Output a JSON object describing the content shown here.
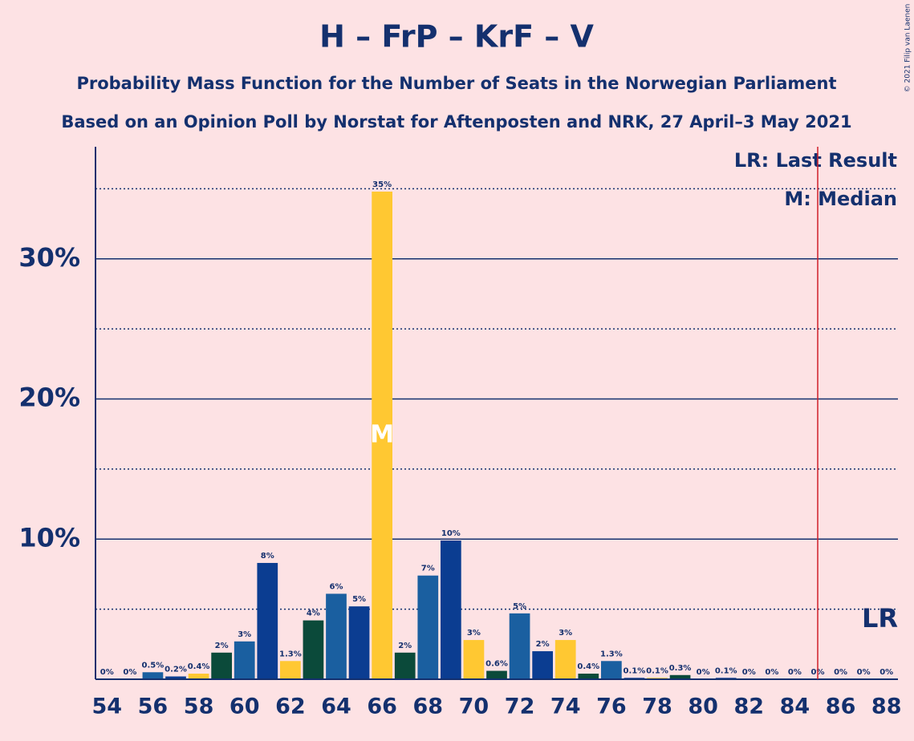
{
  "chart_data": {
    "type": "bar",
    "title": "H – FrP – KrF – V",
    "subtitle": "Probability Mass Function for the Number of Seats in the Norwegian Parliament",
    "subtitle2": "Based on an Opinion Poll by Norstat for Aftenposten and NRK, 27 April–3 May 2021",
    "copyright": "© 2021 Filip van Laenen",
    "x": [
      54,
      55,
      56,
      57,
      58,
      59,
      60,
      61,
      62,
      63,
      64,
      65,
      66,
      67,
      68,
      69,
      70,
      71,
      72,
      73,
      74,
      75,
      76,
      77,
      78,
      79,
      80,
      81,
      82,
      83,
      84,
      85,
      86,
      87,
      88
    ],
    "values": [
      0,
      0,
      0.5,
      0.2,
      0.4,
      1.9,
      2.7,
      8.3,
      1.3,
      4.2,
      6.1,
      5.2,
      34.8,
      1.9,
      7.4,
      9.9,
      2.8,
      0.6,
      4.7,
      2.0,
      2.8,
      0.4,
      1.3,
      0.1,
      0.1,
      0.3,
      0,
      0.1,
      0,
      0,
      0,
      0,
      0,
      0,
      0
    ],
    "value_labels": [
      "0%",
      "0%",
      "0.5%",
      "0.2%",
      "0.4%",
      "2%",
      "3%",
      "8%",
      "1.3%",
      "4%",
      "6%",
      "5%",
      "35%",
      "2%",
      "7%",
      "10%",
      "3%",
      "0.6%",
      "5%",
      "2%",
      "3%",
      "0.4%",
      "1.3%",
      "0.1%",
      "0.1%",
      "0.3%",
      "0%",
      "0.1%",
      "0%",
      "0%",
      "0%",
      "0%",
      "0%",
      "0%",
      "0%"
    ],
    "colors": [
      "#ffc832",
      "#0b4a3a",
      "#1a5fa0",
      "#0b3d91",
      "#ffc832",
      "#0b4a3a",
      "#1a5fa0",
      "#0b3d91",
      "#ffc832",
      "#0b4a3a",
      "#1a5fa0",
      "#0b3d91",
      "#ffc832",
      "#0b4a3a",
      "#1a5fa0",
      "#0b3d91",
      "#ffc832",
      "#0b4a3a",
      "#1a5fa0",
      "#0b3d91",
      "#ffc832",
      "#0b4a3a",
      "#1a5fa0",
      "#0b3d91",
      "#ffc832",
      "#0b4a3a",
      "#1a5fa0",
      "#0b3d91",
      "#ffc832",
      "#0b4a3a",
      "#1a5fa0",
      "#0b3d91",
      "#ffc832",
      "#0b4a3a",
      "#1a5fa0"
    ],
    "xlim": [
      53.5,
      88.5
    ],
    "xticks": [
      54,
      56,
      58,
      60,
      62,
      64,
      66,
      68,
      70,
      72,
      74,
      76,
      78,
      80,
      82,
      84,
      86,
      88
    ],
    "ylim": [
      0,
      38
    ],
    "yticks": [
      {
        "value": 10,
        "label": "10%"
      },
      {
        "value": 20,
        "label": "20%"
      },
      {
        "value": 30,
        "label": "30%"
      }
    ],
    "minor_yticks": [
      5,
      15,
      25,
      35
    ],
    "grid": true,
    "median": 66,
    "median_label": "M",
    "last_result": 85,
    "last_result_label": "LR",
    "legend": [
      "LR: Last Result",
      "M: Median"
    ]
  }
}
